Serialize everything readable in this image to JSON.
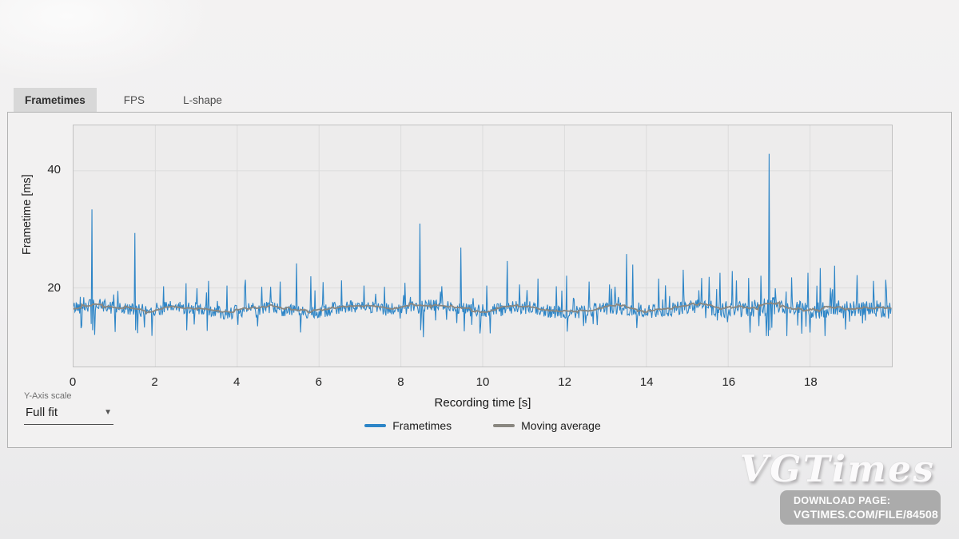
{
  "tabs": [
    {
      "label": "Frametimes",
      "active": true
    },
    {
      "label": "FPS",
      "active": false
    },
    {
      "label": "L-shape",
      "active": false
    }
  ],
  "controls": {
    "y_axis_scale_label": "Y-Axis scale",
    "y_axis_scale_value": "Full fit",
    "caret": "▼"
  },
  "watermark": {
    "logo": "VGTimes",
    "line1": "DOWNLOAD PAGE:",
    "line2": "VGTIMES.COM/FILE/84508"
  },
  "chart_data": {
    "type": "line",
    "title": "",
    "xlabel": "Recording time [s]",
    "ylabel": "Frametime [ms]",
    "xlim": [
      0,
      20
    ],
    "ylim": [
      6.5,
      47.8
    ],
    "x_ticks": [
      0,
      2,
      4,
      6,
      8,
      10,
      12,
      14,
      16,
      18
    ],
    "y_ticks": [
      20,
      40
    ],
    "grid": true,
    "legend_position": "bottom",
    "plot_bg": "#edecec",
    "grid_color": "#dcdcdc",
    "series": [
      {
        "name": "Frametimes",
        "color": "#2d85c7",
        "baseline_ms": 16.4,
        "noise_ms": 1.15,
        "burst_chance": 0.07,
        "burst_mag_ms": 3.0,
        "late_section_start_s": 15.5,
        "late_noise_multiplier": 1.3,
        "avg_fps": 60,
        "spikes": [
          [
            0.45,
            33.4
          ],
          [
            0.52,
            12.0
          ],
          [
            1.08,
            19.5
          ],
          [
            1.5,
            29.4
          ],
          [
            1.57,
            12.3
          ],
          [
            2.2,
            20.3
          ],
          [
            2.75,
            20.8
          ],
          [
            3.3,
            21.2
          ],
          [
            3.75,
            20.4
          ],
          [
            4.2,
            21.4
          ],
          [
            4.6,
            20.2
          ],
          [
            5.05,
            21.1
          ],
          [
            5.45,
            24.2
          ],
          [
            5.55,
            12.4
          ],
          [
            5.8,
            22.0
          ],
          [
            6.1,
            21.0
          ],
          [
            6.55,
            21.3
          ],
          [
            7.1,
            20.4
          ],
          [
            7.6,
            20.2
          ],
          [
            8.1,
            20.9
          ],
          [
            8.47,
            31.0
          ],
          [
            8.55,
            11.6
          ],
          [
            9.0,
            20.3
          ],
          [
            9.47,
            26.9
          ],
          [
            9.55,
            12.6
          ],
          [
            10.1,
            20.4
          ],
          [
            10.6,
            24.6
          ],
          [
            10.9,
            20.6
          ],
          [
            11.35,
            21.6
          ],
          [
            11.8,
            20.3
          ],
          [
            12.05,
            22.1
          ],
          [
            12.6,
            21.1
          ],
          [
            13.1,
            20.6
          ],
          [
            13.52,
            25.8
          ],
          [
            13.66,
            24.0
          ],
          [
            14.3,
            21.6
          ],
          [
            14.9,
            23.1
          ],
          [
            15.35,
            21.7
          ],
          [
            15.8,
            22.6
          ],
          [
            16.1,
            22.9
          ],
          [
            16.5,
            21.7
          ],
          [
            16.8,
            22.1
          ],
          [
            17.0,
            42.9
          ],
          [
            17.07,
            13.2
          ],
          [
            17.55,
            21.8
          ],
          [
            17.95,
            22.6
          ],
          [
            18.25,
            23.4
          ],
          [
            18.6,
            23.8
          ],
          [
            19.15,
            22.2
          ],
          [
            19.55,
            21.2
          ],
          [
            19.85,
            21.4
          ]
        ]
      },
      {
        "name": "Moving average",
        "color": "#8a8780",
        "window_frames": 31,
        "approx_ms": 16.5
      }
    ]
  }
}
